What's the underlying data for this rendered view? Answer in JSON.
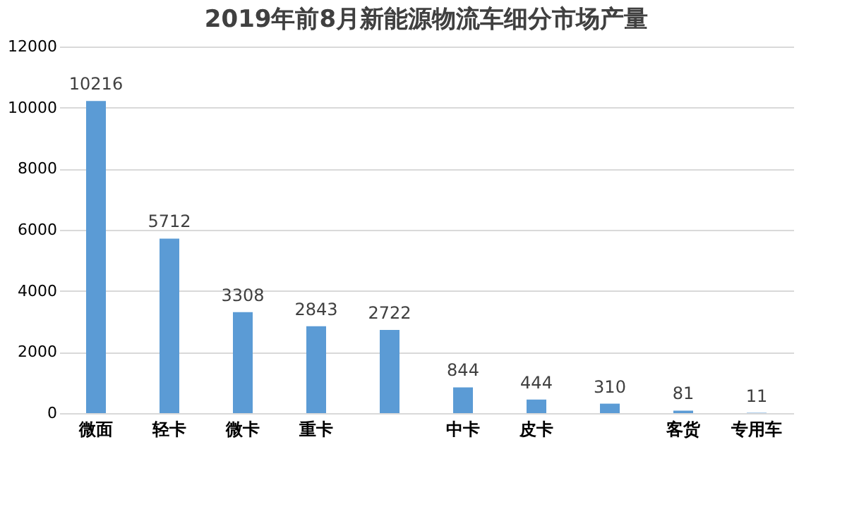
{
  "chart_data": {
    "type": "bar",
    "title": "2019年前8月新能源物流车细分市场产量",
    "categories": [
      "微面",
      "轻卡",
      "微卡",
      "重卡",
      null,
      "中卡",
      "皮卡",
      null,
      "客货",
      "专用车"
    ],
    "values": [
      10216,
      5712,
      3308,
      2843,
      2722,
      844,
      444,
      310,
      81,
      11
    ],
    "color": "#5b9bd5",
    "data_labels": true,
    "ylim": [
      0,
      12000
    ],
    "yticks": [
      0,
      2000,
      4000,
      6000,
      8000,
      10000,
      12000
    ],
    "grid": "y"
  }
}
